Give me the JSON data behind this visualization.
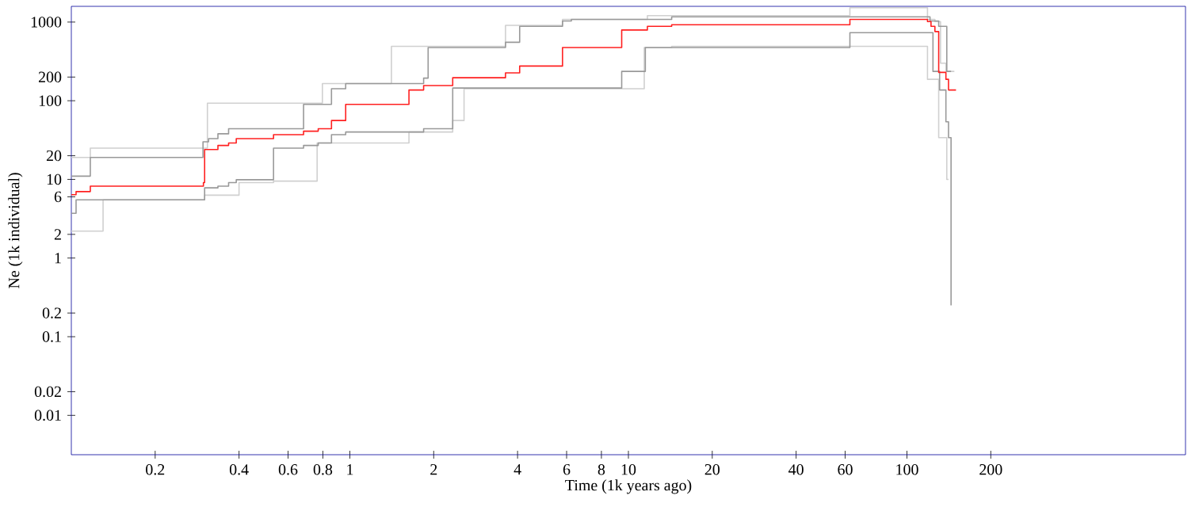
{
  "chart_data": {
    "type": "step",
    "xlabel": "Time (1k years ago)",
    "ylabel": "Ne (1k individual)",
    "log": "xy",
    "xlim": [
      0.1,
      1000
    ],
    "ylim": [
      0.00316,
      1585
    ],
    "xticks": [
      0.2,
      0.4,
      0.6,
      0.8,
      1,
      2,
      4,
      6,
      8,
      10,
      20,
      40,
      60,
      100,
      200
    ],
    "yticks": [
      0.01,
      0.02,
      0.1,
      0.2,
      1,
      2,
      6,
      10,
      20,
      100,
      200,
      1000
    ],
    "series": [
      {
        "color": "#d0d0d0",
        "x": [
          0.1,
          0.117,
          0.308,
          0.797,
          1.41,
          3.62,
          5.8,
          11.7,
          62.4,
          118.5,
          126,
          132,
          138,
          148
        ],
        "values": [
          19,
          25,
          93,
          165,
          491,
          910,
          1082,
          1205,
          1520,
          1082,
          1016,
          300,
          236,
          236
        ]
      },
      {
        "color": "#d0d0d0",
        "x": [
          0.1,
          0.13,
          0.301,
          0.4,
          0.532,
          0.763,
          1.63,
          2.34,
          2.57,
          11.4,
          14.3,
          118.5,
          130,
          139,
          141
        ],
        "values": [
          2.2,
          5.5,
          6.3,
          9.1,
          9.5,
          29,
          40,
          56,
          142,
          475,
          491,
          187,
          34,
          10,
          10
        ]
      },
      {
        "color": "#999999",
        "x": [
          0.1,
          0.117,
          0.297,
          0.311,
          0.336,
          0.367,
          0.682,
          0.859,
          0.966,
          1.84,
          1.91,
          3.62,
          4.07,
          5.8,
          6.24,
          14.3,
          121,
          130,
          139,
          144
        ],
        "values": [
          11,
          19,
          30,
          33,
          38,
          44,
          90,
          142,
          165,
          194,
          475,
          554,
          882,
          1033,
          1082,
          1166,
          1033,
          882,
          236,
          236
        ]
      },
      {
        "color": "#999999",
        "x": [
          0.1,
          0.104,
          0.301,
          0.336,
          0.367,
          0.391,
          0.532,
          0.682,
          0.77,
          0.859,
          0.966,
          1.84,
          2.34,
          9.46,
          11.5,
          62.4,
          124,
          131,
          138,
          141,
          144
        ],
        "values": [
          3.7,
          5.5,
          7.8,
          8.2,
          9.1,
          9.9,
          25,
          27,
          29,
          37,
          40,
          44,
          145,
          236,
          475,
          732,
          236,
          137,
          54,
          34,
          0.25
        ]
      },
      {
        "color": "#ff2020",
        "x": [
          0.1,
          0.104,
          0.117,
          0.298,
          0.301,
          0.336,
          0.367,
          0.391,
          0.532,
          0.682,
          0.77,
          0.859,
          0.966,
          1.63,
          1.84,
          2.34,
          3.62,
          4.07,
          5.8,
          9.46,
          11.7,
          14.3,
          62.4,
          118.5,
          122,
          126,
          130,
          138,
          141,
          150
        ],
        "values": [
          6.4,
          7,
          8.2,
          9.1,
          24,
          27,
          29,
          33,
          37,
          41,
          44,
          56,
          90,
          137,
          156,
          196,
          226,
          276,
          475,
          792,
          883,
          925,
          1082,
          1016,
          883,
          757,
          229,
          187,
          137,
          137
        ]
      }
    ]
  }
}
